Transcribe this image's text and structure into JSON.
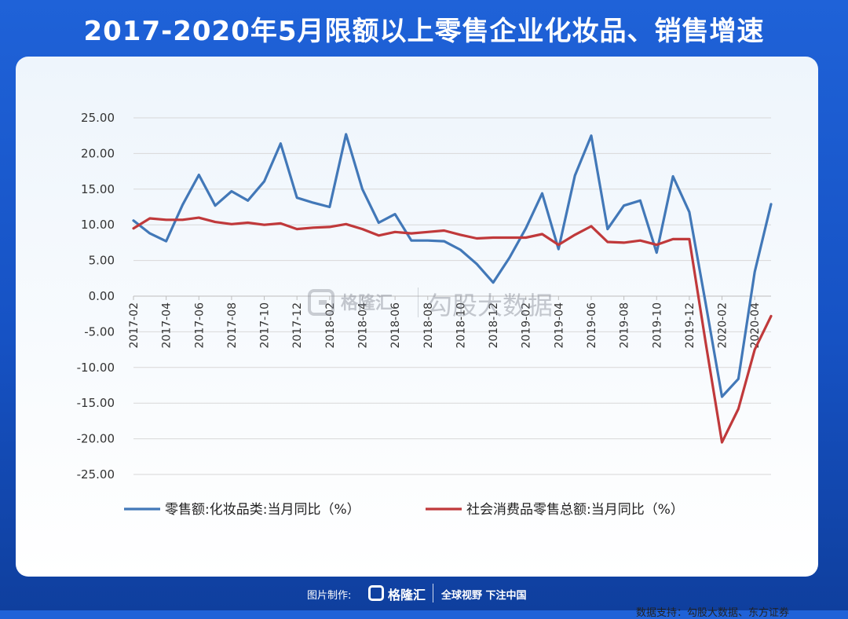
{
  "title": "2017-2020年5月限额以上零售企业化妆品、销售增速",
  "chart_data": {
    "type": "line",
    "title": "",
    "xlabel": "",
    "ylabel": "",
    "ylim": [
      -25,
      25
    ],
    "y_ticks": [
      "25.00",
      "20.00",
      "15.00",
      "10.00",
      "5.00",
      "0.00",
      "-5.00",
      "-10.00",
      "-15.00",
      "-20.00",
      "-25.00"
    ],
    "x_tick_labels": [
      "2017-02",
      "2017-04",
      "2017-06",
      "2017-08",
      "2017-10",
      "2017-12",
      "2018-02",
      "2018-04",
      "2018-06",
      "2018-08",
      "2018-10",
      "2018-12",
      "2019-02",
      "2019-04",
      "2019-06",
      "2019-08",
      "2019-10",
      "2019-12",
      "2020-02",
      "2020-04"
    ],
    "grid": true,
    "legend_position": "bottom",
    "series": [
      {
        "name": "零售额:化妆品类:当月同比（%）",
        "color": "#4278b8",
        "values": [
          10.6,
          8.8,
          7.7,
          12.8,
          17.0,
          12.7,
          14.7,
          13.4,
          16.1,
          21.4,
          13.8,
          13.1,
          12.5,
          22.7,
          15.0,
          10.3,
          11.5,
          7.8,
          7.8,
          7.7,
          6.5,
          4.5,
          1.9,
          5.4,
          9.5,
          14.4,
          6.6,
          16.9,
          22.5,
          9.4,
          12.7,
          13.4,
          6.1,
          16.8,
          11.8,
          -1.0,
          -14.1,
          -11.6,
          3.4,
          12.9
        ]
      },
      {
        "name": "社会消费品零售总额:当月同比（%）",
        "color": "#c0393b",
        "values": [
          9.5,
          10.9,
          10.7,
          10.7,
          11.0,
          10.4,
          10.1,
          10.3,
          10.0,
          10.2,
          9.4,
          9.6,
          9.7,
          10.1,
          9.4,
          8.5,
          9.0,
          8.8,
          9.0,
          9.2,
          8.6,
          8.1,
          8.2,
          8.2,
          8.2,
          8.7,
          7.2,
          8.6,
          9.8,
          7.6,
          7.5,
          7.8,
          7.2,
          8.0,
          8.0,
          -6.5,
          -20.5,
          -15.8,
          -7.5,
          -2.8
        ]
      }
    ]
  },
  "watermark": {
    "brand": "格隆汇",
    "text": "勾股大数据"
  },
  "source": "数据支持：勾股大数据、东方证券",
  "footer": {
    "label": "图片制作:",
    "brand": "格隆汇",
    "slogan": "全球视野 下注中国"
  }
}
